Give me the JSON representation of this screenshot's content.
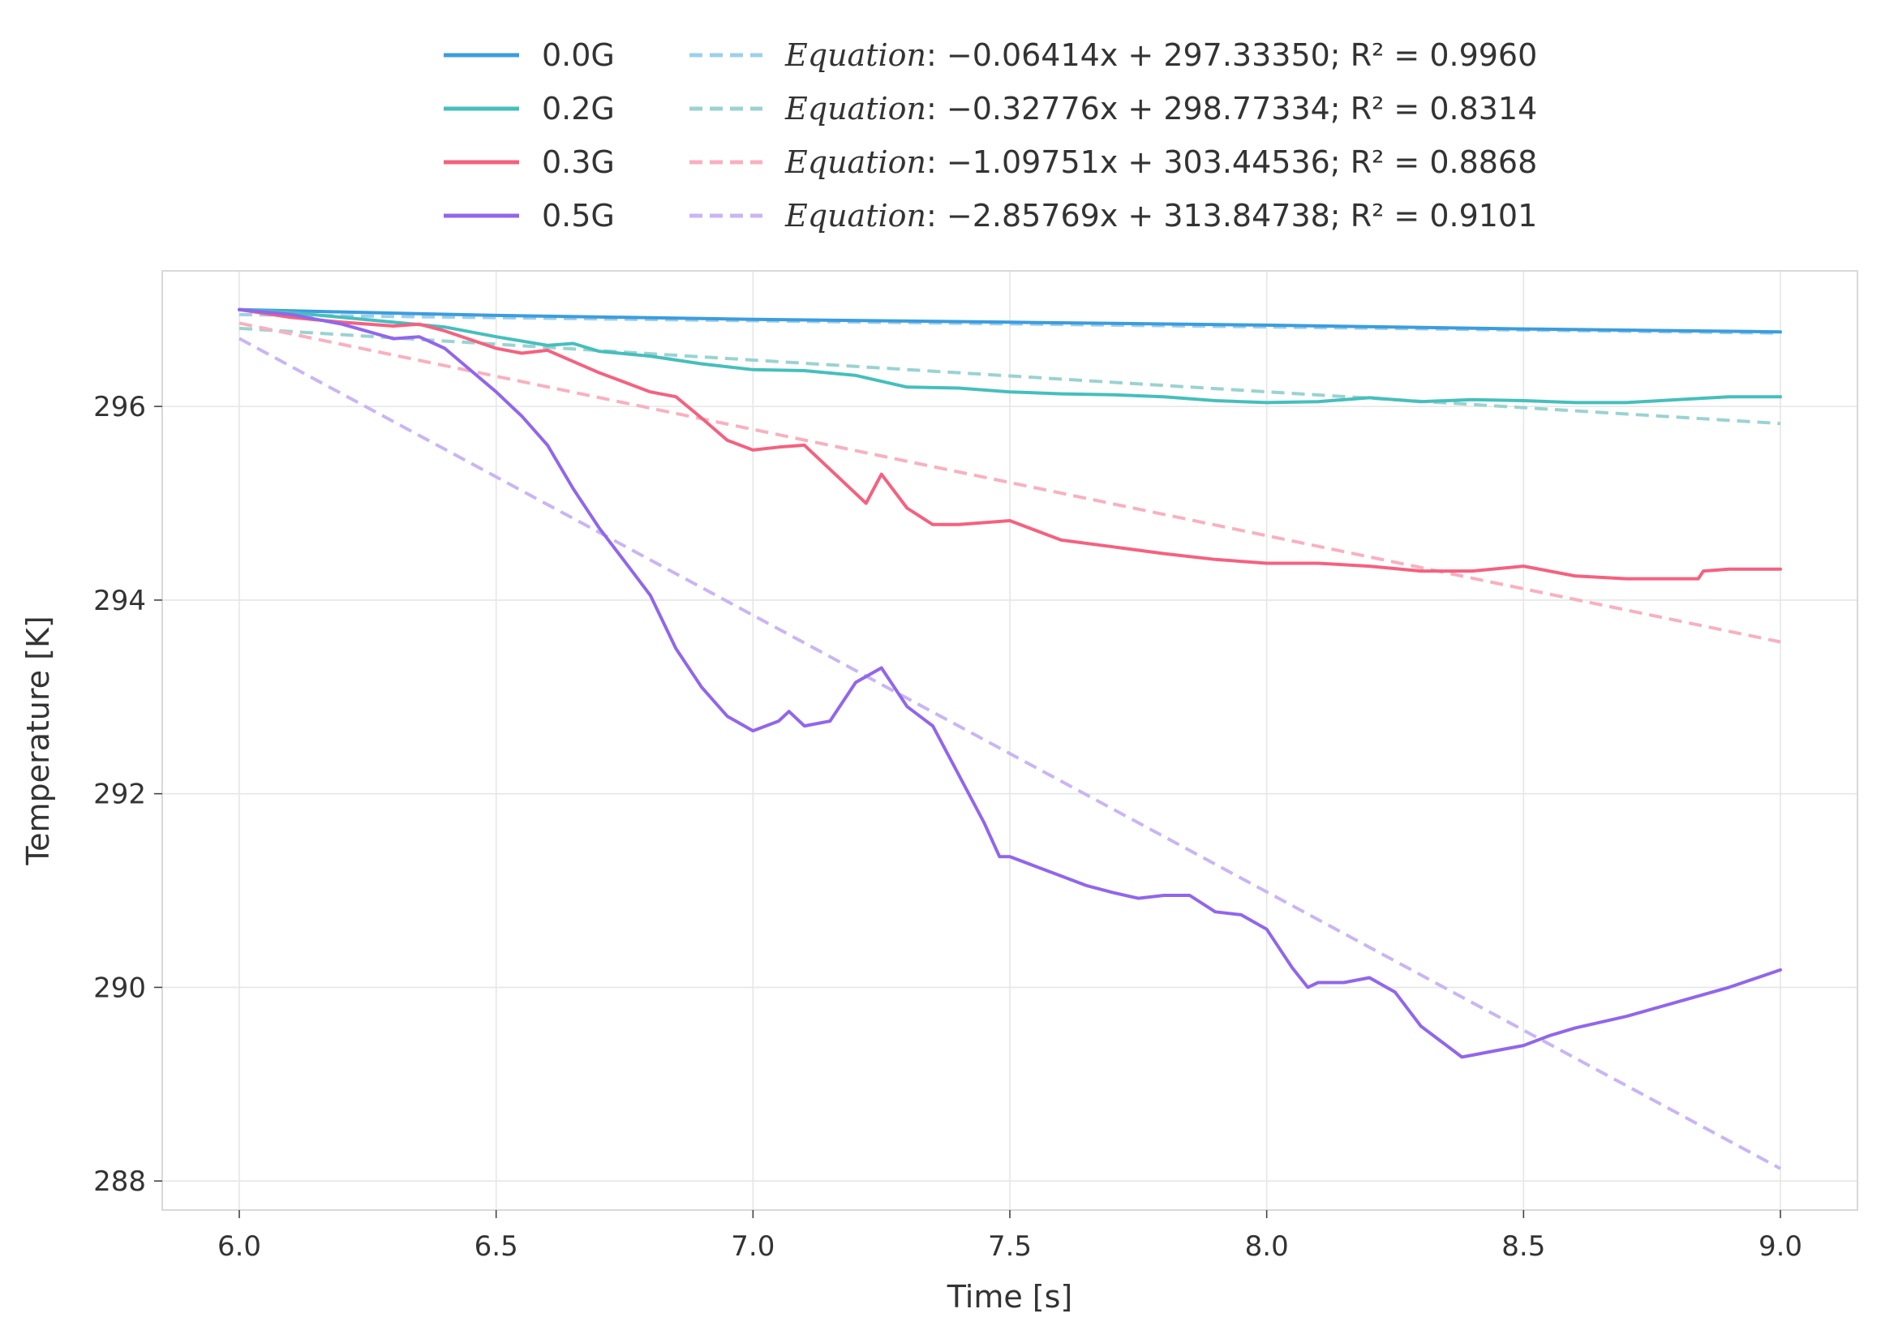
{
  "chart_data": {
    "type": "line",
    "xlabel": "Time [s]",
    "ylabel": "Temperature [K]",
    "xlim": [
      5.85,
      9.15
    ],
    "ylim": [
      287.7,
      297.4
    ],
    "xticks": [
      "6.0",
      "6.5",
      "7.0",
      "7.5",
      "8.0",
      "8.5",
      "9.0"
    ],
    "yticks": [
      "288",
      "290",
      "292",
      "294",
      "296"
    ],
    "grid": true,
    "legend_position": "top-center",
    "series": [
      {
        "name": "0.0G",
        "color": "#3b9ddd",
        "x": [
          6.0,
          6.5,
          7.0,
          7.5,
          8.0,
          8.5,
          9.0
        ],
        "y": [
          297.0,
          296.94,
          296.9,
          296.87,
          296.84,
          296.8,
          296.77
        ]
      },
      {
        "name": "0.2G",
        "color": "#45bfbd",
        "x": [
          6.0,
          6.1,
          6.2,
          6.3,
          6.4,
          6.5,
          6.6,
          6.65,
          6.7,
          6.8,
          6.9,
          7.0,
          7.1,
          7.2,
          7.3,
          7.4,
          7.5,
          7.6,
          7.7,
          7.8,
          7.9,
          8.0,
          8.1,
          8.2,
          8.3,
          8.4,
          8.5,
          8.6,
          8.7,
          8.8,
          8.9,
          9.0
        ],
        "y": [
          297.0,
          296.97,
          296.92,
          296.87,
          296.82,
          296.72,
          296.63,
          296.65,
          296.57,
          296.52,
          296.44,
          296.38,
          296.37,
          296.32,
          296.2,
          296.19,
          296.15,
          296.13,
          296.12,
          296.1,
          296.06,
          296.04,
          296.05,
          296.09,
          296.05,
          296.07,
          296.06,
          296.04,
          296.04,
          296.07,
          296.1,
          296.1
        ]
      },
      {
        "name": "0.3G",
        "color": "#f5617f",
        "x": [
          6.0,
          6.1,
          6.2,
          6.3,
          6.35,
          6.4,
          6.5,
          6.55,
          6.6,
          6.7,
          6.8,
          6.85,
          6.9,
          6.95,
          7.0,
          7.05,
          7.1,
          7.15,
          7.2,
          7.22,
          7.25,
          7.3,
          7.35,
          7.4,
          7.5,
          7.6,
          7.7,
          7.8,
          7.9,
          8.0,
          8.1,
          8.2,
          8.3,
          8.4,
          8.5,
          8.6,
          8.7,
          8.8,
          8.84,
          8.85,
          8.9,
          9.0
        ],
        "y": [
          297.0,
          296.92,
          296.87,
          296.83,
          296.85,
          296.78,
          296.6,
          296.55,
          296.58,
          296.35,
          296.15,
          296.1,
          295.88,
          295.65,
          295.55,
          295.58,
          295.6,
          295.35,
          295.1,
          295.0,
          295.3,
          294.95,
          294.78,
          294.78,
          294.82,
          294.62,
          294.55,
          294.48,
          294.42,
          294.38,
          294.38,
          294.35,
          294.3,
          294.3,
          294.35,
          294.25,
          294.22,
          294.22,
          294.22,
          294.3,
          294.32,
          294.32
        ]
      },
      {
        "name": "0.5G",
        "color": "#9166ec",
        "x": [
          6.0,
          6.1,
          6.2,
          6.3,
          6.35,
          6.4,
          6.5,
          6.55,
          6.6,
          6.65,
          6.7,
          6.75,
          6.8,
          6.85,
          6.9,
          6.95,
          7.0,
          7.05,
          7.07,
          7.1,
          7.15,
          7.2,
          7.25,
          7.3,
          7.35,
          7.4,
          7.45,
          7.48,
          7.5,
          7.55,
          7.6,
          7.65,
          7.7,
          7.75,
          7.8,
          7.85,
          7.9,
          7.95,
          8.0,
          8.05,
          8.08,
          8.1,
          8.15,
          8.2,
          8.25,
          8.3,
          8.38,
          8.4,
          8.45,
          8.5,
          8.55,
          8.6,
          8.7,
          8.8,
          8.9,
          9.0
        ],
        "y": [
          297.0,
          296.95,
          296.85,
          296.7,
          296.72,
          296.6,
          296.15,
          295.9,
          295.6,
          295.15,
          294.75,
          294.4,
          294.05,
          293.5,
          293.1,
          292.8,
          292.65,
          292.75,
          292.85,
          292.7,
          292.75,
          293.15,
          293.3,
          292.9,
          292.7,
          292.2,
          291.7,
          291.35,
          291.35,
          291.25,
          291.15,
          291.05,
          290.98,
          290.92,
          290.95,
          290.95,
          290.78,
          290.75,
          290.6,
          290.2,
          290.0,
          290.05,
          290.05,
          290.1,
          289.95,
          289.6,
          289.28,
          289.3,
          289.35,
          289.4,
          289.5,
          289.58,
          289.7,
          289.85,
          290.0,
          290.18
        ]
      }
    ],
    "fits": [
      {
        "label_prefix": "Equation",
        "label_rest": ": −0.06414x + 297.33350; R² = 0.9960",
        "color": "#9ecfed",
        "slope": -0.06414,
        "intercept": 297.3335
      },
      {
        "label_prefix": "Equation",
        "label_rest": ": −0.32776x + 298.77334; R² = 0.8314",
        "color": "#9ad3d1",
        "slope": -0.32776,
        "intercept": 298.77334
      },
      {
        "label_prefix": "Equation",
        "label_rest": ": −1.09751x + 303.44536; R² = 0.8868",
        "color": "#f9b0bf",
        "slope": -1.09751,
        "intercept": 303.44536
      },
      {
        "label_prefix": "Equation",
        "label_rest": ": −2.85769x + 313.84738; R² = 0.9101",
        "color": "#c9b5f5",
        "slope": -2.85769,
        "intercept": 313.84738
      }
    ]
  }
}
